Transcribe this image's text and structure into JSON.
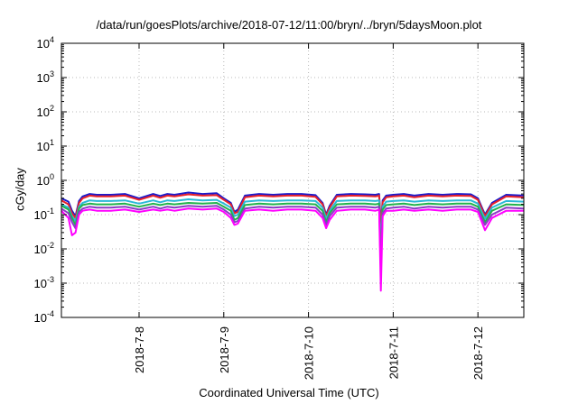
{
  "chart_data": {
    "type": "line",
    "title": "/data/run/goesPlots/archive/2018-07-12/11:00/bryn/../bryn/5daysMoon.plot",
    "xlabel": "Coordinated Universal Time (UTC)",
    "ylabel": "cGy/day",
    "x_range": [
      "2018-07-07T02:00",
      "2018-07-12T13:00"
    ],
    "x_ticks": [
      "2018-7-8",
      "2018-7-9",
      "2018-7-10",
      "2018-7-11",
      "2018-7-12"
    ],
    "y_scale": "log",
    "ylim": [
      0.0001,
      10000
    ],
    "y_ticks": [
      {
        "value": 0.0001,
        "base": "10",
        "exp": "-4"
      },
      {
        "value": 0.001,
        "base": "10",
        "exp": "-3"
      },
      {
        "value": 0.01,
        "base": "10",
        "exp": "-2"
      },
      {
        "value": 0.1,
        "base": "10",
        "exp": "-1"
      },
      {
        "value": 1,
        "base": "10",
        "exp": "0"
      },
      {
        "value": 10,
        "base": "10",
        "exp": "1"
      },
      {
        "value": 100,
        "base": "10",
        "exp": "2"
      },
      {
        "value": 1000,
        "base": "10",
        "exp": "3"
      },
      {
        "value": 10000,
        "base": "10",
        "exp": "4"
      }
    ],
    "grid": true,
    "legend": "none",
    "x": [
      "2018-07-07T02:00",
      "2018-07-07T04:00",
      "2018-07-07T05:00",
      "2018-07-07T06:00",
      "2018-07-07T07:00",
      "2018-07-07T08:00",
      "2018-07-07T10:00",
      "2018-07-07T12:00",
      "2018-07-07T16:00",
      "2018-07-07T20:00",
      "2018-07-08T00:00",
      "2018-07-08T04:00",
      "2018-07-08T06:00",
      "2018-07-08T08:00",
      "2018-07-08T10:00",
      "2018-07-08T14:00",
      "2018-07-08T18:00",
      "2018-07-08T22:00",
      "2018-07-09T00:00",
      "2018-07-09T02:00",
      "2018-07-09T03:00",
      "2018-07-09T04:00",
      "2018-07-09T06:00",
      "2018-07-09T10:00",
      "2018-07-09T14:00",
      "2018-07-09T18:00",
      "2018-07-09T22:00",
      "2018-07-10T02:00",
      "2018-07-10T04:00",
      "2018-07-10T05:00",
      "2018-07-10T06:00",
      "2018-07-10T08:00",
      "2018-07-10T12:00",
      "2018-07-10T16:00",
      "2018-07-10T19:00",
      "2018-07-10T20:00",
      "2018-07-10T20:30",
      "2018-07-10T21:00",
      "2018-07-10T22:00",
      "2018-07-11T00:00",
      "2018-07-11T03:00",
      "2018-07-11T06:00",
      "2018-07-11T10:00",
      "2018-07-11T14:00",
      "2018-07-11T18:00",
      "2018-07-11T22:00",
      "2018-07-12T00:00",
      "2018-07-12T02:00",
      "2018-07-12T04:00",
      "2018-07-12T08:00",
      "2018-07-12T13:00"
    ],
    "series": [
      {
        "color": "#1a1acc",
        "values": [
          0.3,
          0.24,
          0.13,
          0.09,
          0.25,
          0.34,
          0.4,
          0.38,
          0.38,
          0.4,
          0.3,
          0.4,
          0.35,
          0.4,
          0.38,
          0.44,
          0.4,
          0.42,
          0.3,
          0.22,
          0.12,
          0.14,
          0.36,
          0.4,
          0.38,
          0.4,
          0.4,
          0.37,
          0.22,
          0.1,
          0.18,
          0.38,
          0.4,
          0.39,
          0.38,
          0.4,
          0.05,
          0.26,
          0.36,
          0.38,
          0.4,
          0.36,
          0.4,
          0.38,
          0.4,
          0.39,
          0.3,
          0.1,
          0.22,
          0.38,
          0.36
        ]
      },
      {
        "color": "#e8212a",
        "values": [
          0.26,
          0.2,
          0.11,
          0.08,
          0.22,
          0.3,
          0.36,
          0.34,
          0.34,
          0.36,
          0.27,
          0.36,
          0.31,
          0.36,
          0.34,
          0.39,
          0.36,
          0.37,
          0.27,
          0.2,
          0.11,
          0.12,
          0.32,
          0.36,
          0.34,
          0.36,
          0.36,
          0.33,
          0.2,
          0.09,
          0.16,
          0.34,
          0.36,
          0.35,
          0.34,
          0.36,
          0.04,
          0.23,
          0.32,
          0.34,
          0.36,
          0.32,
          0.36,
          0.34,
          0.36,
          0.35,
          0.27,
          0.09,
          0.2,
          0.34,
          0.32
        ]
      },
      {
        "color": "#2ab8d8",
        "values": [
          0.2,
          0.16,
          0.09,
          0.065,
          0.17,
          0.22,
          0.26,
          0.25,
          0.25,
          0.26,
          0.21,
          0.26,
          0.23,
          0.26,
          0.25,
          0.28,
          0.26,
          0.27,
          0.21,
          0.16,
          0.09,
          0.1,
          0.24,
          0.26,
          0.25,
          0.26,
          0.26,
          0.25,
          0.16,
          0.075,
          0.13,
          0.25,
          0.26,
          0.26,
          0.25,
          0.26,
          0.012,
          0.17,
          0.24,
          0.25,
          0.26,
          0.24,
          0.26,
          0.25,
          0.26,
          0.26,
          0.21,
          0.075,
          0.16,
          0.25,
          0.24
        ]
      },
      {
        "color": "#22b24c",
        "values": [
          0.18,
          0.14,
          0.08,
          0.05,
          0.15,
          0.19,
          0.21,
          0.2,
          0.2,
          0.21,
          0.17,
          0.21,
          0.19,
          0.21,
          0.2,
          0.22,
          0.21,
          0.22,
          0.17,
          0.13,
          0.07,
          0.08,
          0.19,
          0.21,
          0.2,
          0.21,
          0.21,
          0.2,
          0.13,
          0.06,
          0.11,
          0.2,
          0.21,
          0.21,
          0.2,
          0.21,
          0.005,
          0.14,
          0.19,
          0.2,
          0.21,
          0.19,
          0.21,
          0.2,
          0.21,
          0.21,
          0.17,
          0.06,
          0.13,
          0.2,
          0.19
        ]
      },
      {
        "color": "#8a3cc4",
        "values": [
          0.15,
          0.11,
          0.06,
          0.04,
          0.12,
          0.15,
          0.17,
          0.16,
          0.16,
          0.17,
          0.14,
          0.17,
          0.15,
          0.17,
          0.16,
          0.18,
          0.17,
          0.18,
          0.14,
          0.1,
          0.06,
          0.065,
          0.15,
          0.17,
          0.16,
          0.17,
          0.17,
          0.16,
          0.1,
          0.05,
          0.09,
          0.16,
          0.17,
          0.17,
          0.16,
          0.17,
          0.002,
          0.11,
          0.15,
          0.16,
          0.17,
          0.15,
          0.17,
          0.16,
          0.17,
          0.17,
          0.14,
          0.05,
          0.1,
          0.16,
          0.15
        ]
      },
      {
        "color": "#ff00ff",
        "values": [
          0.13,
          0.08,
          0.025,
          0.03,
          0.1,
          0.13,
          0.14,
          0.13,
          0.13,
          0.14,
          0.12,
          0.14,
          0.13,
          0.14,
          0.13,
          0.15,
          0.14,
          0.15,
          0.12,
          0.08,
          0.05,
          0.055,
          0.13,
          0.14,
          0.13,
          0.14,
          0.14,
          0.13,
          0.08,
          0.04,
          0.07,
          0.13,
          0.14,
          0.14,
          0.13,
          0.14,
          0.0006,
          0.09,
          0.13,
          0.13,
          0.14,
          0.13,
          0.14,
          0.13,
          0.14,
          0.14,
          0.12,
          0.035,
          0.08,
          0.13,
          0.13
        ]
      }
    ]
  }
}
